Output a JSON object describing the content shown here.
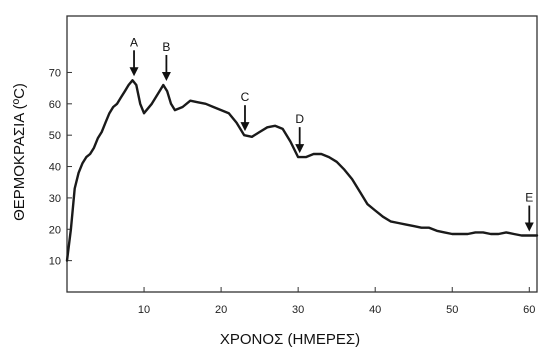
{
  "chart_data": {
    "type": "line",
    "title": "",
    "xlabel": "ΧΡΟΝΟΣ (ΗΜΕΡΕΣ)",
    "ylabel": "ΘΕΡΜΟΚΡΑΣΙΑ (ºC)",
    "xlim": [
      0,
      61
    ],
    "ylim": [
      0,
      88
    ],
    "x_ticks": [
      "10",
      "20",
      "30",
      "40",
      "50",
      "60"
    ],
    "y_ticks": [
      "10",
      "20",
      "30",
      "40",
      "50",
      "60",
      "70"
    ],
    "grid": false,
    "colors": {
      "line": "#1a1a1a",
      "axis": "#333333"
    },
    "series": [
      {
        "x": [
          0,
          0.5,
          1,
          1.5,
          2,
          2.5,
          3,
          3.5,
          4,
          4.5,
          5,
          5.5,
          6,
          6.5,
          7,
          7.5,
          8,
          8.5,
          9,
          9.5,
          10,
          11,
          12,
          12.5,
          13,
          13.5,
          14,
          15,
          16,
          17,
          18,
          19,
          20,
          21,
          22,
          23,
          24,
          25,
          26,
          27,
          28,
          29,
          30,
          31,
          32,
          33,
          34,
          35,
          36,
          37,
          38,
          39,
          40,
          41,
          42,
          43,
          44,
          45,
          46,
          47,
          48,
          49,
          50,
          51,
          52,
          53,
          54,
          55,
          56,
          57,
          58,
          59,
          60,
          61
        ],
        "y": [
          10,
          20,
          33,
          38,
          41,
          43,
          44,
          46,
          49,
          51,
          54,
          57,
          59,
          60,
          62,
          64,
          66,
          67.5,
          66,
          60,
          57,
          60,
          64,
          66,
          64,
          60,
          58,
          59,
          61,
          60.5,
          60,
          59,
          58,
          57,
          54,
          50,
          49.5,
          51,
          52.5,
          53,
          52,
          48,
          43,
          43,
          44,
          44,
          43,
          41.5,
          39,
          36,
          32,
          28,
          26,
          24,
          22.5,
          22,
          21.5,
          21,
          20.5,
          20.5,
          19.5,
          19,
          18.5,
          18.5,
          18.5,
          19,
          19,
          18.5,
          18.5,
          19,
          18.5,
          18,
          18,
          18
        ]
      }
    ],
    "annotations": [
      {
        "label": "A",
        "x": 8.7,
        "y": 67.5
      },
      {
        "label": "B",
        "x": 12.9,
        "y": 66
      },
      {
        "label": "C",
        "x": 23.1,
        "y": 50
      },
      {
        "label": "D",
        "x": 30.2,
        "y": 43
      },
      {
        "label": "E",
        "x": 60,
        "y": 18
      }
    ]
  }
}
